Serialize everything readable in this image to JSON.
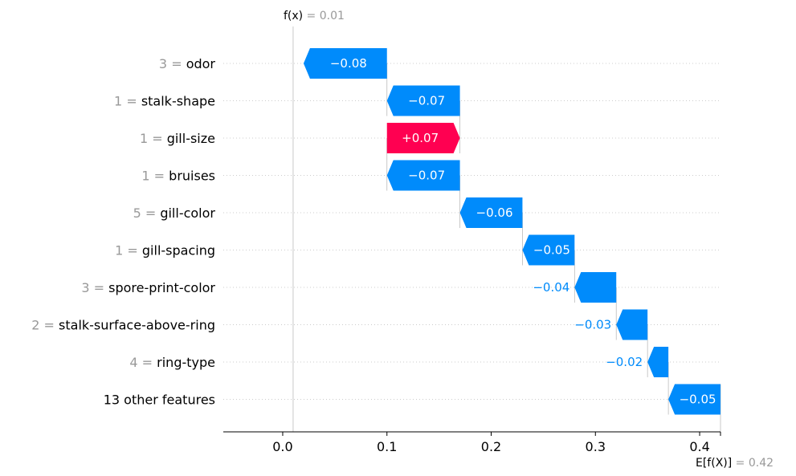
{
  "chart_data": {
    "type": "waterfall",
    "f_x": {
      "prefix": "f(x)",
      "value_text": "= 0.01",
      "value": 0.01
    },
    "expected": {
      "prefix": "E[f(X)]",
      "value_text": "= 0.42",
      "value": 0.42
    },
    "xlim": [
      -0.057,
      0.42
    ],
    "xticks": [
      0.0,
      0.1,
      0.2,
      0.3,
      0.4
    ],
    "xtick_labels": [
      "0.0",
      "0.1",
      "0.2",
      "0.3",
      "0.4"
    ],
    "features": [
      {
        "value": "3 =",
        "name": "odor",
        "contribution": -0.08,
        "label": "−0.08"
      },
      {
        "value": "1 =",
        "name": "stalk-shape",
        "contribution": -0.07,
        "label": "−0.07"
      },
      {
        "value": "1 =",
        "name": "gill-size",
        "contribution": 0.07,
        "label": "+0.07"
      },
      {
        "value": "1 =",
        "name": "bruises",
        "contribution": -0.07,
        "label": "−0.07"
      },
      {
        "value": "5 =",
        "name": "gill-color",
        "contribution": -0.06,
        "label": "−0.06"
      },
      {
        "value": "1 =",
        "name": "gill-spacing",
        "contribution": -0.05,
        "label": "−0.05"
      },
      {
        "value": "3 =",
        "name": "spore-print-color",
        "contribution": -0.04,
        "label": "−0.04"
      },
      {
        "value": "2 =",
        "name": "stalk-surface-above-ring",
        "contribution": -0.03,
        "label": "−0.03"
      },
      {
        "value": "4 =",
        "name": "ring-type",
        "contribution": -0.02,
        "label": "−0.02"
      },
      {
        "value": "",
        "name": "13 other features",
        "contribution": -0.05,
        "label": "−0.05"
      }
    ],
    "colors": {
      "negative": "#008bfb",
      "positive": "#ff0051",
      "muted": "#999999"
    }
  }
}
